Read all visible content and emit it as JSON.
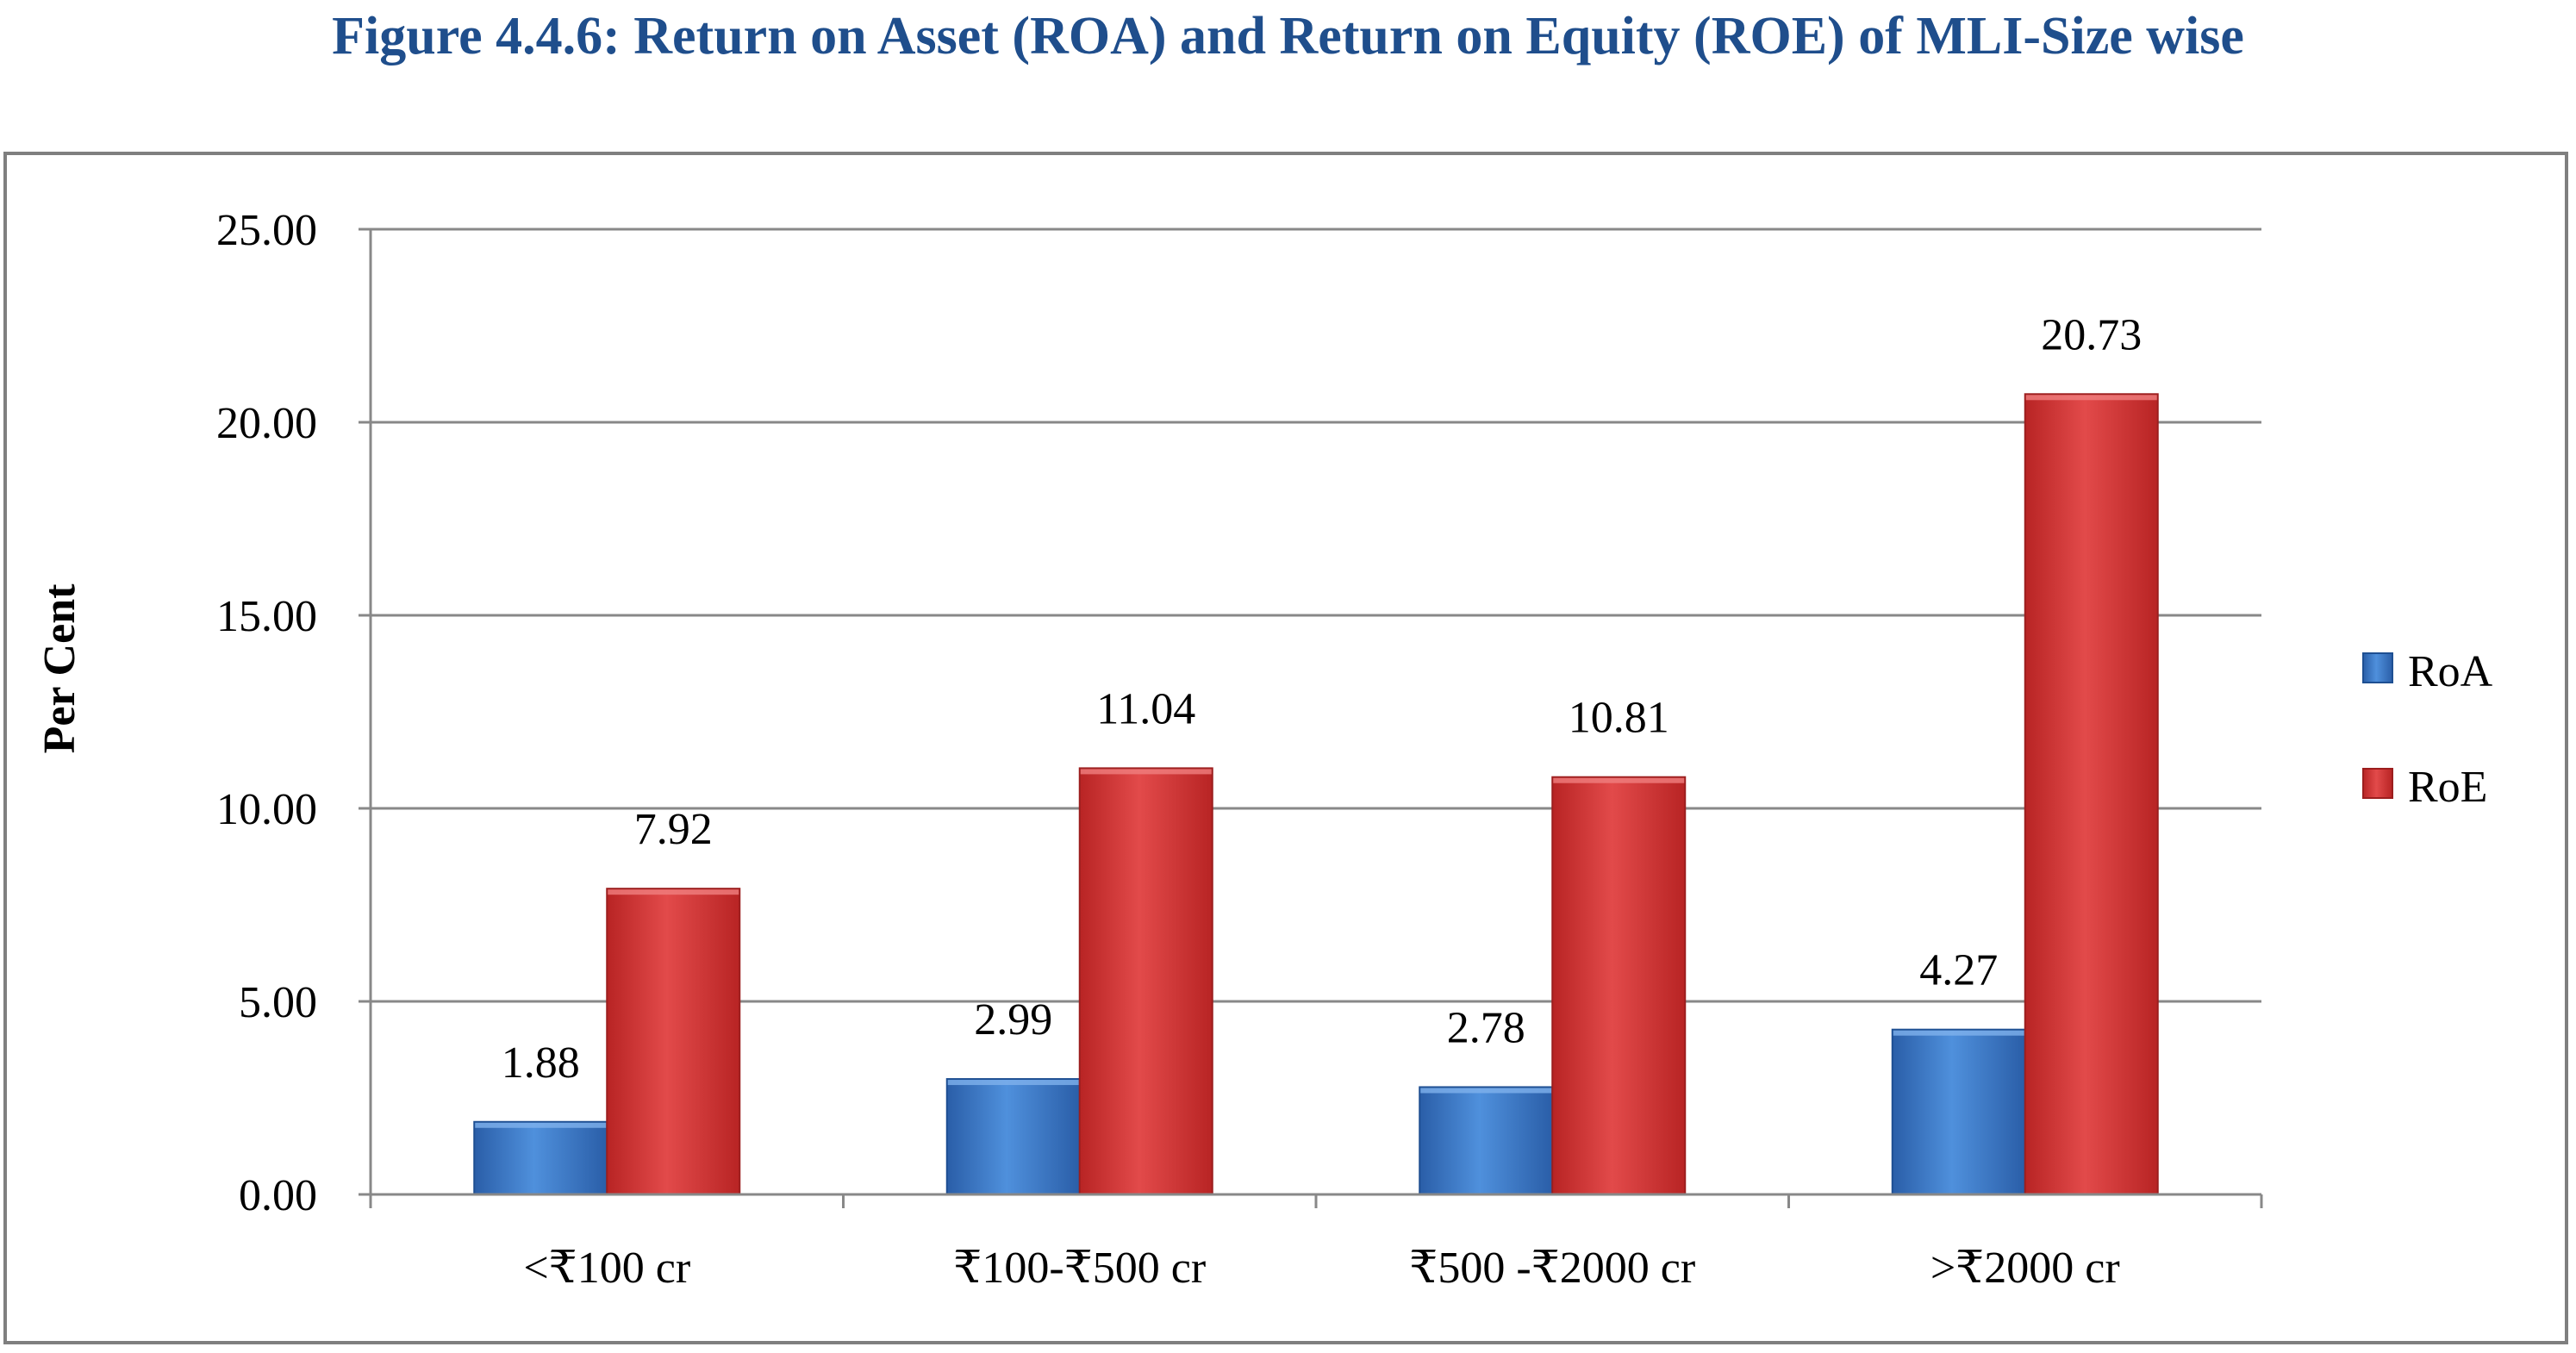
{
  "title": "Figure 4.4.6: Return on Asset (ROA) and Return on Equity (ROE) of MLI-Size wise",
  "colors": {
    "title": "#1f4e8c",
    "roa": "#3a78c6",
    "roe": "#d63a3a",
    "grid": "#888888",
    "frame": "#7f7f7f"
  },
  "chart_data": {
    "type": "bar",
    "title": "",
    "xlabel": "",
    "ylabel": "Per Cent",
    "ylim": [
      0,
      25
    ],
    "yticks": [
      "0.00",
      "5.00",
      "10.00",
      "15.00",
      "20.00",
      "25.00"
    ],
    "grid": true,
    "legend_position": "right",
    "categories": [
      "<₹100 cr",
      "₹100-₹500 cr",
      "₹500 -₹2000 cr",
      ">₹2000 cr"
    ],
    "series": [
      {
        "name": "RoA",
        "values": [
          1.88,
          2.99,
          2.78,
          4.27
        ],
        "labels": [
          "1.88",
          "2.99",
          "2.78",
          "4.27"
        ]
      },
      {
        "name": "RoE",
        "values": [
          7.92,
          11.04,
          10.81,
          20.73
        ],
        "labels": [
          "7.92",
          "11.04",
          "10.81",
          "20.73"
        ]
      }
    ]
  }
}
